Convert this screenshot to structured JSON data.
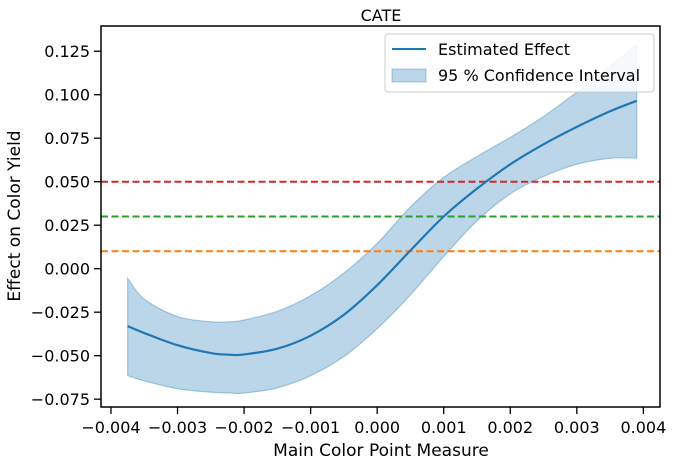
{
  "chart_data": {
    "type": "line",
    "title": "CATE",
    "xlabel": "Main Color Point Measure",
    "ylabel": "Effect on Color Yield",
    "xlim": [
      -0.00415,
      0.00425
    ],
    "ylim": [
      -0.0795,
      0.1395
    ],
    "xticks": [
      -0.004,
      -0.003,
      -0.002,
      -0.001,
      0.0,
      0.001,
      0.002,
      0.003,
      0.004
    ],
    "xtick_labels": [
      "−0.004",
      "−0.003",
      "−0.002",
      "−0.001",
      "0.000",
      "0.001",
      "0.002",
      "0.003",
      "0.004"
    ],
    "yticks": [
      -0.075,
      -0.05,
      -0.025,
      0.0,
      0.025,
      0.05,
      0.075,
      0.1,
      0.125
    ],
    "ytick_labels": [
      "−0.075",
      "−0.050",
      "−0.025",
      "0.000",
      "0.025",
      "0.050",
      "0.075",
      "0.100",
      "0.125"
    ],
    "grid": false,
    "legend_position": "top-right",
    "x": [
      -0.00375,
      -0.0035,
      -0.003,
      -0.0025,
      -0.0022,
      -0.002,
      -0.0015,
      -0.001,
      -0.0005,
      0.0,
      0.0005,
      0.001,
      0.0015,
      0.002,
      0.0025,
      0.003,
      0.0035,
      0.0039
    ],
    "series": [
      {
        "name": "Estimated Effect",
        "color": "#1f77b4",
        "values": [
          -0.033,
          -0.037,
          -0.044,
          -0.0485,
          -0.0495,
          -0.0493,
          -0.046,
          -0.0385,
          -0.0265,
          -0.0095,
          0.0105,
          0.03,
          0.046,
          0.06,
          0.0715,
          0.0815,
          0.0905,
          0.0965
        ]
      }
    ],
    "confidence_interval": {
      "name": "95 % Confidence Interval",
      "color": "#1f77b4",
      "lower": [
        -0.0615,
        -0.0645,
        -0.069,
        -0.071,
        -0.0715,
        -0.0715,
        -0.0685,
        -0.0615,
        -0.0505,
        -0.0345,
        -0.015,
        0.007,
        0.0275,
        0.043,
        0.053,
        0.06,
        0.0635,
        0.0635
      ],
      "upper": [
        -0.0055,
        -0.0175,
        -0.0275,
        -0.0305,
        -0.0305,
        -0.0295,
        -0.0245,
        -0.0155,
        -0.0025,
        0.0145,
        0.0355,
        0.0525,
        0.0645,
        0.0755,
        0.0875,
        0.1015,
        0.1165,
        0.1285
      ]
    },
    "reference_lines": [
      {
        "y": 0.05,
        "color": "#d62728",
        "style": "dashed"
      },
      {
        "y": 0.03,
        "color": "#2ca02c",
        "style": "dashed"
      },
      {
        "y": 0.01,
        "color": "#ff7f0e",
        "style": "dashed"
      }
    ]
  }
}
